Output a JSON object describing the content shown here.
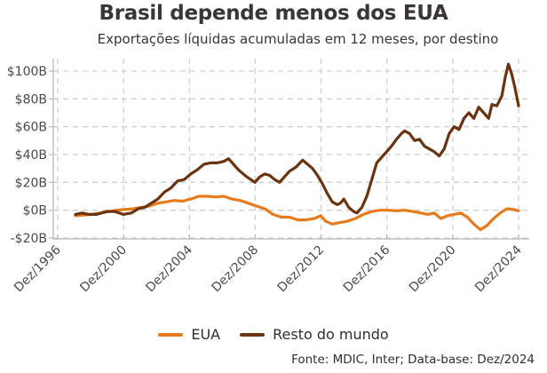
{
  "chart_data": {
    "type": "line",
    "title": "Brasil depende menos dos EUA",
    "subtitle": "Exportações líquidas acumuladas em 12 meses, por destino",
    "xlabel": "",
    "ylabel": "",
    "xlim": [
      1996.92,
      2024.92
    ],
    "ylim": [
      -20,
      100
    ],
    "grid": true,
    "legend_position": "bottom-center",
    "x_ticks": [
      {
        "x": 1996.92,
        "label": "Dez/1996"
      },
      {
        "x": 2000.92,
        "label": "Dez/2000"
      },
      {
        "x": 2004.92,
        "label": "Dez/2004"
      },
      {
        "x": 2008.92,
        "label": "Dez/2008"
      },
      {
        "x": 2012.92,
        "label": "Dez/2012"
      },
      {
        "x": 2016.92,
        "label": "Dez/2016"
      },
      {
        "x": 2020.92,
        "label": "Dez/2020"
      },
      {
        "x": 2024.92,
        "label": "Dez/2024"
      }
    ],
    "y_ticks": [
      {
        "y": 100,
        "label": "$100B"
      },
      {
        "y": 80,
        "label": "$80B"
      },
      {
        "y": 60,
        "label": "$60B"
      },
      {
        "y": 40,
        "label": "$40B"
      },
      {
        "y": 20,
        "label": "$20B"
      },
      {
        "y": 0,
        "label": "$0B"
      },
      {
        "y": -20,
        "label": "-$20B"
      }
    ],
    "series": [
      {
        "name": "EUA",
        "color": "#E87A1E",
        "points": [
          [
            1998.0,
            -4
          ],
          [
            1998.5,
            -3.5
          ],
          [
            1999.0,
            -3
          ],
          [
            1999.5,
            -2
          ],
          [
            2000.0,
            -1
          ],
          [
            2000.5,
            0
          ],
          [
            2001.0,
            0.5
          ],
          [
            2001.5,
            1
          ],
          [
            2002.0,
            2
          ],
          [
            2002.5,
            3
          ],
          [
            2003.0,
            5
          ],
          [
            2003.5,
            6
          ],
          [
            2004.0,
            7
          ],
          [
            2004.5,
            6.5
          ],
          [
            2005.0,
            8
          ],
          [
            2005.5,
            10
          ],
          [
            2006.0,
            10
          ],
          [
            2006.5,
            9.5
          ],
          [
            2007.0,
            10
          ],
          [
            2007.5,
            8
          ],
          [
            2008.0,
            7
          ],
          [
            2008.5,
            5
          ],
          [
            2009.0,
            3
          ],
          [
            2009.5,
            1
          ],
          [
            2010.0,
            -3
          ],
          [
            2010.5,
            -5
          ],
          [
            2011.0,
            -5
          ],
          [
            2011.5,
            -7
          ],
          [
            2012.0,
            -7
          ],
          [
            2012.5,
            -6
          ],
          [
            2012.9,
            -4
          ],
          [
            2013.2,
            -8
          ],
          [
            2013.6,
            -10
          ],
          [
            2014.0,
            -9
          ],
          [
            2014.5,
            -8
          ],
          [
            2015.0,
            -6
          ],
          [
            2015.5,
            -3
          ],
          [
            2016.0,
            -1
          ],
          [
            2016.5,
            0
          ],
          [
            2017.0,
            0
          ],
          [
            2017.5,
            -0.5
          ],
          [
            2018.0,
            0
          ],
          [
            2018.5,
            -1
          ],
          [
            2019.0,
            -2
          ],
          [
            2019.4,
            -3
          ],
          [
            2019.8,
            -2
          ],
          [
            2020.2,
            -6
          ],
          [
            2020.6,
            -4
          ],
          [
            2021.0,
            -3
          ],
          [
            2021.4,
            -2
          ],
          [
            2021.8,
            -5
          ],
          [
            2022.2,
            -10
          ],
          [
            2022.6,
            -14
          ],
          [
            2023.0,
            -11
          ],
          [
            2023.4,
            -6
          ],
          [
            2023.8,
            -2
          ],
          [
            2024.2,
            1
          ],
          [
            2024.6,
            0.5
          ],
          [
            2024.92,
            -0.5
          ]
        ]
      },
      {
        "name": "Resto do mundo",
        "color": "#6B3410",
        "points": [
          [
            1998.0,
            -3
          ],
          [
            1998.4,
            -2
          ],
          [
            1998.8,
            -3
          ],
          [
            1999.3,
            -3
          ],
          [
            1999.9,
            -1
          ],
          [
            2000.4,
            -1
          ],
          [
            2000.9,
            -3
          ],
          [
            2001.4,
            -2
          ],
          [
            2001.8,
            1
          ],
          [
            2002.2,
            2
          ],
          [
            2002.6,
            5
          ],
          [
            2003.0,
            8
          ],
          [
            2003.4,
            13
          ],
          [
            2003.8,
            16
          ],
          [
            2004.2,
            21
          ],
          [
            2004.6,
            22
          ],
          [
            2005.0,
            26
          ],
          [
            2005.4,
            29
          ],
          [
            2005.8,
            33
          ],
          [
            2006.2,
            34
          ],
          [
            2006.6,
            34
          ],
          [
            2007.0,
            35
          ],
          [
            2007.3,
            37
          ],
          [
            2007.6,
            33
          ],
          [
            2007.9,
            29
          ],
          [
            2008.4,
            24
          ],
          [
            2008.9,
            20
          ],
          [
            2009.2,
            24
          ],
          [
            2009.5,
            26
          ],
          [
            2009.8,
            25
          ],
          [
            2010.1,
            22
          ],
          [
            2010.4,
            20
          ],
          [
            2010.7,
            24
          ],
          [
            2011.0,
            28
          ],
          [
            2011.4,
            31
          ],
          [
            2011.8,
            36
          ],
          [
            2012.1,
            33
          ],
          [
            2012.4,
            30
          ],
          [
            2012.7,
            25
          ],
          [
            2013.0,
            19
          ],
          [
            2013.3,
            12
          ],
          [
            2013.6,
            6
          ],
          [
            2013.9,
            4
          ],
          [
            2014.1,
            5
          ],
          [
            2014.3,
            8
          ],
          [
            2014.6,
            2
          ],
          [
            2014.9,
            -1
          ],
          [
            2015.1,
            -2
          ],
          [
            2015.4,
            2
          ],
          [
            2015.7,
            10
          ],
          [
            2016.0,
            22
          ],
          [
            2016.3,
            34
          ],
          [
            2016.6,
            38
          ],
          [
            2016.9,
            42
          ],
          [
            2017.2,
            46
          ],
          [
            2017.5,
            51
          ],
          [
            2017.8,
            55
          ],
          [
            2018.0,
            57
          ],
          [
            2018.3,
            55
          ],
          [
            2018.6,
            50
          ],
          [
            2018.9,
            51
          ],
          [
            2019.2,
            46
          ],
          [
            2019.5,
            44
          ],
          [
            2019.8,
            42
          ],
          [
            2020.1,
            39
          ],
          [
            2020.4,
            44
          ],
          [
            2020.7,
            55
          ],
          [
            2021.0,
            60
          ],
          [
            2021.3,
            58
          ],
          [
            2021.6,
            66
          ],
          [
            2021.9,
            70
          ],
          [
            2022.2,
            66
          ],
          [
            2022.5,
            74
          ],
          [
            2022.8,
            70
          ],
          [
            2023.1,
            66
          ],
          [
            2023.3,
            76
          ],
          [
            2023.6,
            75
          ],
          [
            2023.9,
            82
          ],
          [
            2024.1,
            95
          ],
          [
            2024.3,
            105
          ],
          [
            2024.5,
            98
          ],
          [
            2024.7,
            88
          ],
          [
            2024.92,
            75
          ]
        ]
      }
    ]
  },
  "legend": {
    "items": [
      {
        "label": "EUA",
        "color": "#E87A1E"
      },
      {
        "label": "Resto do mundo",
        "color": "#6B3410"
      }
    ]
  },
  "footer": {
    "source": "Fonte: MDIC, Inter; Data-base: Dez/2024"
  }
}
